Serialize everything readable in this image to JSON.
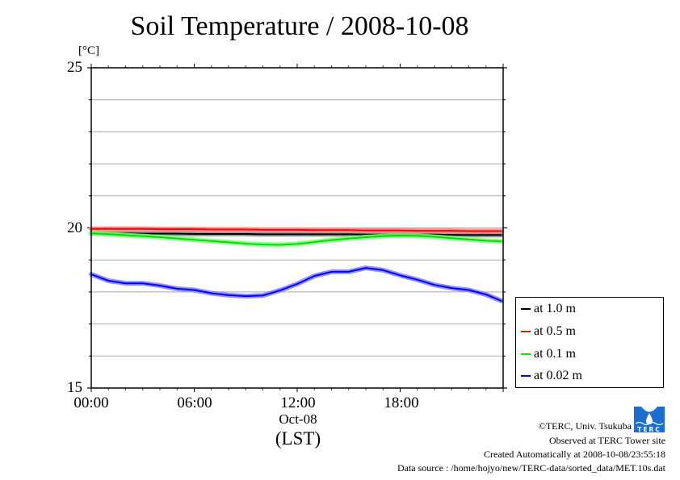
{
  "page": {
    "title": "Soil Temperature / 2008-10-08",
    "unit_label": "[°C]",
    "date_label": "Oct-08",
    "timezone_label": "(LST)"
  },
  "credits": {
    "copyright": "©TERC, Univ. Tsukuba",
    "observed": "Observed at TERC Tower site",
    "created": "Created Automatically at 2008-10-08/23:55:18",
    "source": "Data source : /home/hojyo/new/TERC-data/sorted_data/MET.10s.dat",
    "logo_text": "TERC"
  },
  "chart_data": {
    "type": "line",
    "title": "Soil Temperature / 2008-10-08",
    "xlabel": "Oct-08 (LST)",
    "ylabel": "[°C]",
    "xlim": [
      0,
      24
    ],
    "ylim": [
      15,
      25
    ],
    "grid": true,
    "y_ticks": [
      {
        "value": 15,
        "label": "15"
      },
      {
        "value": 20,
        "label": "20"
      },
      {
        "value": 25,
        "label": "25"
      }
    ],
    "x_ticks": [
      {
        "value": 0,
        "label": "00:00"
      },
      {
        "value": 6,
        "label": "06:00"
      },
      {
        "value": 12,
        "label": "12:00"
      },
      {
        "value": 18,
        "label": "18:00"
      }
    ],
    "legend_position": "right",
    "x": [
      0,
      1,
      2,
      3,
      4,
      5,
      6,
      7,
      8,
      9,
      10,
      11,
      12,
      13,
      14,
      15,
      16,
      17,
      18,
      19,
      20,
      21,
      22,
      23,
      23.9
    ],
    "series": [
      {
        "name": "at 1.0 m",
        "color": "#000000",
        "halo": "#888888",
        "values": [
          19.83,
          19.83,
          19.83,
          19.82,
          19.82,
          19.82,
          19.81,
          19.81,
          19.81,
          19.81,
          19.8,
          19.8,
          19.8,
          19.8,
          19.8,
          19.8,
          19.79,
          19.79,
          19.79,
          19.79,
          19.79,
          19.78,
          19.78,
          19.78,
          19.78
        ]
      },
      {
        "name": "at 0.5 m",
        "color": "#ff0000",
        "halo": "#ff8080",
        "values": [
          19.97,
          19.97,
          19.97,
          19.97,
          19.96,
          19.96,
          19.96,
          19.95,
          19.95,
          19.95,
          19.94,
          19.94,
          19.94,
          19.93,
          19.93,
          19.93,
          19.92,
          19.92,
          19.92,
          19.91,
          19.91,
          19.91,
          19.9,
          19.9,
          19.9
        ]
      },
      {
        "name": "at 0.1 m",
        "color": "#00dd00",
        "halo": "#80ff80",
        "values": [
          19.83,
          19.8,
          19.77,
          19.74,
          19.71,
          19.67,
          19.63,
          19.59,
          19.55,
          19.51,
          19.48,
          19.47,
          19.5,
          19.56,
          19.62,
          19.67,
          19.71,
          19.74,
          19.76,
          19.75,
          19.72,
          19.68,
          19.64,
          19.6,
          19.58
        ]
      },
      {
        "name": "at 0.02 m",
        "color": "#0000ff",
        "halo": "#8080ff",
        "values": [
          18.55,
          18.35,
          18.27,
          18.27,
          18.2,
          18.1,
          18.06,
          17.96,
          17.9,
          17.87,
          17.89,
          18.05,
          18.25,
          18.5,
          18.63,
          18.63,
          18.75,
          18.68,
          18.52,
          18.38,
          18.22,
          18.12,
          18.06,
          17.92,
          17.72
        ]
      }
    ]
  }
}
